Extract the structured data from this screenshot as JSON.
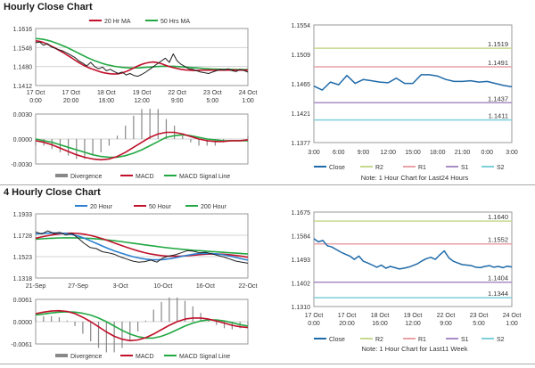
{
  "sections": {
    "hourly": "Hourly Close Chart",
    "four_hourly": "4 Hourly Close Chart"
  },
  "colors": {
    "close": "#1f1f1f",
    "ma_red": "#c0102a",
    "ma_green": "#22a843",
    "ma_blue": "#2b7fd0",
    "macd": "#c0102a",
    "signal": "#22a843",
    "divergence": "#888888",
    "r2": "#c6d98d",
    "r1": "#e8a2a8",
    "s1": "#a88cc6",
    "s2": "#7fcfd9",
    "right_close": "#1f6aa8"
  },
  "chart_data": [
    {
      "id": "hourly_price_ma",
      "type": "line",
      "title": "",
      "legend": [
        "20 Hr MA",
        "50 Hrs MA"
      ],
      "y_ticks": [
        "1.1616",
        "1.1548",
        "1.1480",
        "1.1412"
      ],
      "ylim": [
        1.1412,
        1.1616
      ],
      "x_ticks": [
        [
          "17 Oct",
          "0:00"
        ],
        [
          "17 Oct",
          "20:00"
        ],
        [
          "18 Oct",
          "16:00"
        ],
        [
          "19 Oct",
          "12:00"
        ],
        [
          "22 Oct",
          "9:00"
        ],
        [
          "23 Oct",
          "5:00"
        ],
        [
          "24 Oct",
          "1:00"
        ]
      ],
      "series": [
        {
          "name": "Close",
          "values": [
            1.1565,
            1.1568,
            1.1556,
            1.1562,
            1.155,
            1.1545,
            1.154,
            1.1535,
            1.1528,
            1.152,
            1.1512,
            1.15,
            1.1492,
            1.1482,
            1.1495,
            1.148,
            1.1472,
            1.1478,
            1.1465,
            1.147,
            1.1462,
            1.1455,
            1.146,
            1.145,
            1.1455,
            1.1448,
            1.1445,
            1.1452,
            1.146,
            1.147,
            1.148,
            1.149,
            1.15,
            1.151,
            1.1495,
            1.1525,
            1.15,
            1.1488,
            1.148,
            1.1472,
            1.147,
            1.1465,
            1.146,
            1.1458,
            1.1455,
            1.146,
            1.1465,
            1.147,
            1.1468,
            1.1472,
            1.1465,
            1.1462,
            1.147,
            1.1466,
            1.146
          ]
        },
        {
          "name": "20 Hr MA",
          "values": [
            1.1572,
            1.157,
            1.1566,
            1.156,
            1.1553,
            1.1546,
            1.1538,
            1.153,
            1.1521,
            1.1512,
            1.1503,
            1.1494,
            1.1486,
            1.1479,
            1.1473,
            1.1468,
            1.1463,
            1.1459,
            1.1456,
            1.1454,
            1.1453,
            1.1454,
            1.1457,
            1.1462,
            1.1468,
            1.1475,
            1.1482,
            1.1488,
            1.1492,
            1.1495,
            1.1496,
            1.1494,
            1.149,
            1.1485,
            1.148,
            1.1476,
            1.1473,
            1.147,
            1.1468,
            1.1467,
            1.1466,
            1.1466,
            1.1467,
            1.1467,
            1.1467,
            1.1467,
            1.1467,
            1.1467,
            1.1467,
            1.1467,
            1.1467,
            1.1467,
            1.1467,
            1.1467,
            1.1467
          ]
        },
        {
          "name": "50 Hrs MA",
          "values": [
            1.158,
            1.1579,
            1.1577,
            1.1574,
            1.157,
            1.1565,
            1.156,
            1.1554,
            1.1548,
            1.1541,
            1.1534,
            1.1527,
            1.152,
            1.1513,
            1.1507,
            1.1501,
            1.1496,
            1.1491,
            1.1487,
            1.1484,
            1.1481,
            1.1479,
            1.1477,
            1.1476,
            1.1475,
            1.1475,
            1.1475,
            1.1476,
            1.1477,
            1.1478,
            1.1479,
            1.148,
            1.1481,
            1.1481,
            1.1481,
            1.1481,
            1.148,
            1.1479,
            1.1478,
            1.1477,
            1.1476,
            1.1475,
            1.1474,
            1.1473,
            1.1472,
            1.1471,
            1.1471,
            1.147,
            1.147,
            1.147,
            1.147,
            1.1469,
            1.1469,
            1.1469,
            1.1469
          ]
        }
      ]
    },
    {
      "id": "hourly_macd",
      "type": "line",
      "y_ticks": [
        "0.0030",
        "0.0000",
        "-0.0030"
      ],
      "ylim": [
        -0.003,
        0.003
      ],
      "legend": [
        "Divergence",
        "MACD",
        "MACD Signal Line"
      ],
      "series": [
        {
          "name": "MACD",
          "values": [
            -0.0002,
            -0.0004,
            -0.0007,
            -0.0011,
            -0.0015,
            -0.0019,
            -0.0022,
            -0.0024,
            -0.0025,
            -0.0024,
            -0.0021,
            -0.0016,
            -0.001,
            -0.0004,
            0.0002,
            0.0006,
            0.0008,
            0.0008,
            0.0006,
            0.0003,
            0.0,
            -0.0002,
            -0.0003,
            -0.0003,
            -0.0002,
            -0.0002,
            -0.0001
          ]
        },
        {
          "name": "MACD Signal Line",
          "values": [
            0.0,
            -0.0002,
            -0.0004,
            -0.0007,
            -0.001,
            -0.0013,
            -0.0016,
            -0.0019,
            -0.0021,
            -0.0022,
            -0.0022,
            -0.002,
            -0.0017,
            -0.0013,
            -0.0008,
            -0.0003,
            0.0002,
            0.0004,
            0.0005,
            0.0004,
            0.0002,
            0.0,
            -0.0001,
            -0.0002,
            -0.0002,
            -0.0002,
            -0.0002
          ]
        }
      ]
    },
    {
      "id": "hourly_last24",
      "type": "line",
      "ylim": [
        1.1377,
        1.1554
      ],
      "y_ticks": [
        "1.1554",
        "1.1509",
        "1.1465",
        "1.1421",
        "1.1377"
      ],
      "x_ticks": [
        "3:00",
        "6:00",
        "9:00",
        "12:00",
        "15:00",
        "18:00",
        "21:00",
        "0:00",
        "3:00"
      ],
      "levels": [
        {
          "name": "R2",
          "value": 1.1519,
          "label": "1.1519"
        },
        {
          "name": "R1",
          "value": 1.1491,
          "label": "1.1491"
        },
        {
          "name": "S1",
          "value": 1.1437,
          "label": "1.1437"
        },
        {
          "name": "S2",
          "value": 1.1411,
          "label": "1.1411"
        }
      ],
      "series": [
        {
          "name": "Close",
          "values": [
            1.1462,
            1.1456,
            1.1468,
            1.1464,
            1.1478,
            1.1466,
            1.1472,
            1.147,
            1.1468,
            1.1467,
            1.1474,
            1.1466,
            1.1466,
            1.1479,
            1.1479,
            1.1477,
            1.1472,
            1.1469,
            1.1469,
            1.147,
            1.1468,
            1.1469,
            1.1466,
            1.1463,
            1.1461
          ]
        }
      ],
      "legend": [
        "Close",
        "R2",
        "R1",
        "S1",
        "S2"
      ],
      "note": "Note: 1 Hour Chart for Last24 Hours"
    },
    {
      "id": "four_hourly_price_ma",
      "type": "line",
      "legend": [
        "20 Hour",
        "50 Hour",
        "200 Hour"
      ],
      "y_ticks": [
        "1.1933",
        "1.1728",
        "1.1523",
        "1.1318"
      ],
      "ylim": [
        1.1318,
        1.1933
      ],
      "x_ticks": [
        "21-Sep",
        "27-Sep",
        "3-Oct",
        "10-Oct",
        "16-Oct",
        "22-Oct"
      ],
      "series": [
        {
          "name": "Close",
          "values": [
            1.176,
            1.174,
            1.177,
            1.1745,
            1.1755,
            1.173,
            1.1745,
            1.17,
            1.165,
            1.161,
            1.16,
            1.157,
            1.156,
            1.1545,
            1.152,
            1.15,
            1.148,
            1.147,
            1.1475,
            1.149,
            1.147,
            1.151,
            1.153,
            1.154,
            1.156,
            1.158,
            1.1575,
            1.156,
            1.1565,
            1.155,
            1.1535,
            1.152,
            1.15,
            1.148,
            1.147,
            1.146
          ]
        },
        {
          "name": "20 Hour",
          "values": [
            1.174,
            1.1745,
            1.1748,
            1.175,
            1.1748,
            1.1744,
            1.1735,
            1.172,
            1.17,
            1.1675,
            1.165,
            1.1625,
            1.16,
            1.1578,
            1.1558,
            1.154,
            1.1523,
            1.151,
            1.15,
            1.1494,
            1.1492,
            1.1495,
            1.1502,
            1.1512,
            1.1524,
            1.1536,
            1.1546,
            1.1552,
            1.1555,
            1.1553,
            1.1548,
            1.154,
            1.1528,
            1.1515,
            1.1502,
            1.149
          ]
        },
        {
          "name": "50 Hour",
          "values": [
            1.17,
            1.1712,
            1.1724,
            1.1734,
            1.1742,
            1.1747,
            1.1748,
            1.1745,
            1.1738,
            1.1727,
            1.1712,
            1.1695,
            1.1675,
            1.1654,
            1.1633,
            1.1613,
            1.1594,
            1.1576,
            1.1561,
            1.1548,
            1.1538,
            1.1531,
            1.1527,
            1.1526,
            1.1528,
            1.1532,
            1.1537,
            1.1542,
            1.1546,
            1.1548,
            1.1548,
            1.1546,
            1.1541,
            1.1534,
            1.1526,
            1.1517
          ]
        },
        {
          "name": "200 Hour",
          "values": [
            1.169,
            1.1694,
            1.1697,
            1.17,
            1.1702,
            1.1703,
            1.1703,
            1.1702,
            1.17,
            1.1697,
            1.1693,
            1.1688,
            1.1682,
            1.1675,
            1.1668,
            1.166,
            1.1652,
            1.1644,
            1.1636,
            1.1628,
            1.162,
            1.1613,
            1.1606,
            1.16,
            1.1594,
            1.1589,
            1.1584,
            1.158,
            1.1576,
            1.1572,
            1.1568,
            1.1564,
            1.156,
            1.1556,
            1.1552,
            1.1548
          ]
        }
      ]
    },
    {
      "id": "four_hourly_macd",
      "type": "line",
      "y_ticks": [
        "0.0061",
        "0.0000",
        "-0.0061"
      ],
      "ylim": [
        -0.0061,
        0.0061
      ],
      "legend": [
        "Divergence",
        "MACD",
        "MACD Signal Line"
      ],
      "series": [
        {
          "name": "MACD",
          "values": [
            0.0022,
            0.0026,
            0.0029,
            0.003,
            0.0028,
            0.0022,
            0.0012,
            0.0,
            -0.0014,
            -0.0028,
            -0.004,
            -0.0048,
            -0.0052,
            -0.005,
            -0.0044,
            -0.0034,
            -0.0022,
            -0.001,
            0.0,
            0.0007,
            0.001,
            0.001,
            0.0007,
            0.0002,
            -0.0004,
            -0.001,
            -0.0014,
            -0.0016
          ]
        },
        {
          "name": "MACD Signal Line",
          "values": [
            0.0018,
            0.0021,
            0.0024,
            0.0026,
            0.0027,
            0.0026,
            0.0023,
            0.0018,
            0.001,
            0.0,
            -0.0012,
            -0.0024,
            -0.0034,
            -0.0041,
            -0.0045,
            -0.0045,
            -0.004,
            -0.0032,
            -0.0022,
            -0.0012,
            -0.0004,
            0.0002,
            0.0005,
            0.0005,
            0.0002,
            -0.0003,
            -0.0008,
            -0.0012
          ]
        }
      ]
    },
    {
      "id": "four_hourly_last_week",
      "type": "line",
      "ylim": [
        1.131,
        1.1675
      ],
      "y_ticks": [
        "1.1675",
        "1.1584",
        "1.1493",
        "1.1402",
        "1.1310"
      ],
      "x_ticks": [
        [
          "17 Oct",
          "0:00"
        ],
        [
          "17 Oct",
          "20:00"
        ],
        [
          "18 Oct",
          "16:00"
        ],
        [
          "19 Oct",
          "12:00"
        ],
        [
          "22 Oct",
          "9:00"
        ],
        [
          "23 Oct",
          "5:00"
        ],
        [
          "24 Oct",
          "1:00"
        ]
      ],
      "levels": [
        {
          "name": "R2",
          "value": 1.164,
          "label": "1.1640"
        },
        {
          "name": "R1",
          "value": 1.1552,
          "label": "1.1552"
        },
        {
          "name": "S1",
          "value": 1.1404,
          "label": "1.1404"
        },
        {
          "name": "S2",
          "value": 1.1344,
          "label": "1.1344"
        }
      ],
      "series": [
        {
          "name": "Close",
          "values": [
            1.1572,
            1.156,
            1.1565,
            1.1545,
            1.154,
            1.153,
            1.152,
            1.1512,
            1.1505,
            1.1492,
            1.1505,
            1.1485,
            1.1478,
            1.147,
            1.1462,
            1.147,
            1.1458,
            1.1465,
            1.146,
            1.1455,
            1.1458,
            1.1462,
            1.1468,
            1.1475,
            1.1486,
            1.1495,
            1.15,
            1.1492,
            1.151,
            1.1525,
            1.1498,
            1.1485,
            1.1478,
            1.1472,
            1.147,
            1.1468,
            1.1462,
            1.146,
            1.1465,
            1.1468,
            1.1462,
            1.1465,
            1.146,
            1.1466,
            1.1463
          ]
        }
      ],
      "legend": [
        "Close",
        "R2",
        "R1",
        "S1",
        "S2"
      ],
      "note": "Note: 1 Hour Chart for Last11 Week"
    }
  ]
}
